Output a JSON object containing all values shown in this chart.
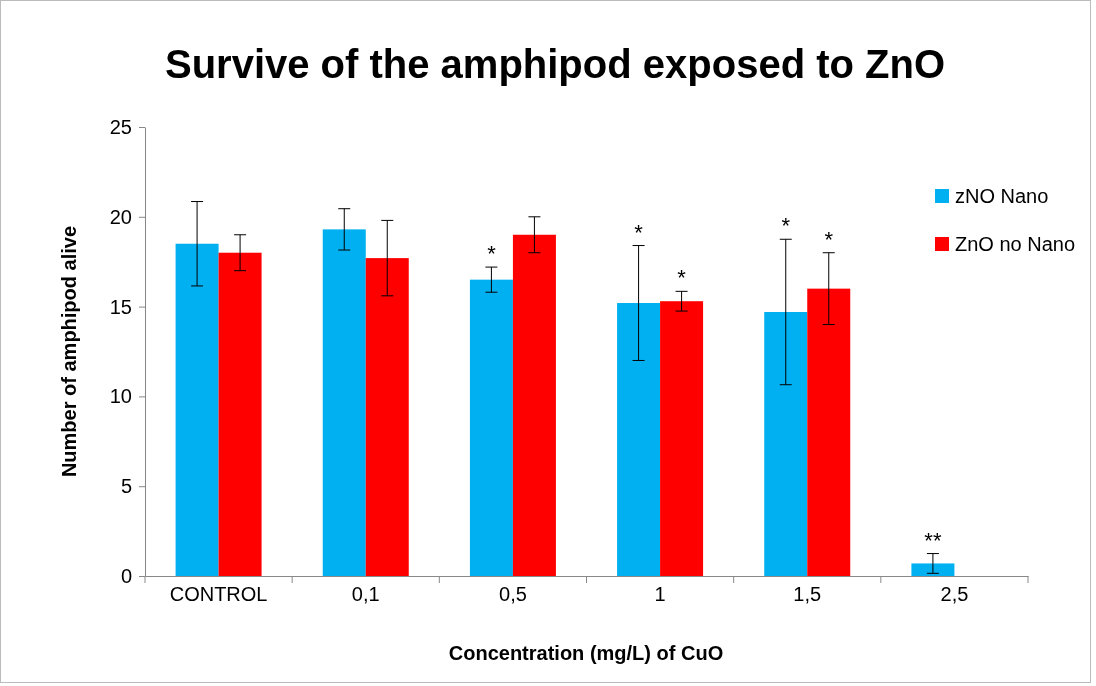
{
  "chart_data": {
    "type": "bar",
    "title": "Survive of the amphipod exposed to ZnO",
    "xlabel": "Concentration (mg/L) of CuO",
    "ylabel": "Number of amphipod alive",
    "categories": [
      "CONTROL",
      "0,1",
      "0,5",
      "1",
      "1,5",
      "2,5"
    ],
    "series": [
      {
        "name": "zNO Nano",
        "color": "#00b0f0",
        "values": [
          18.5,
          19.3,
          16.5,
          15.2,
          14.7,
          0.7
        ],
        "errors": [
          2.35,
          1.15,
          0.7,
          3.2,
          4.05,
          0.55
        ]
      },
      {
        "name": "ZnO no Nano",
        "color": "#ff0000",
        "values": [
          18.0,
          17.7,
          19.0,
          15.3,
          16.0,
          null
        ],
        "errors": [
          1.0,
          2.1,
          1.0,
          0.55,
          2.0,
          null
        ]
      }
    ],
    "ylim": [
      0,
      25
    ],
    "yticks": [
      0,
      5,
      10,
      15,
      20,
      25
    ],
    "grid": false,
    "legend": "right",
    "annotations": [
      {
        "text": "*",
        "x": "0,5",
        "y": 16.5
      },
      {
        "text": "*",
        "x": "1",
        "y": 15.2
      },
      {
        "text": "*",
        "x": "1",
        "y": 15.3
      },
      {
        "text": "*",
        "x": "1,5",
        "y": 14.7
      },
      {
        "text": "*",
        "x": "1,5",
        "y": 16.0
      },
      {
        "text": "**",
        "x": "2,5",
        "y": 0.7
      }
    ]
  }
}
